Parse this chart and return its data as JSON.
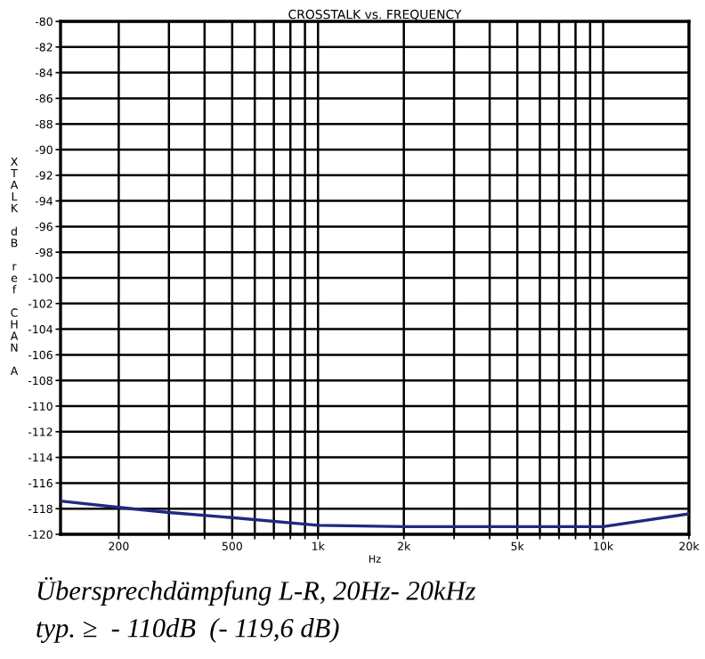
{
  "chart_data": {
    "type": "line",
    "title": "CROSSTALK vs. FREQUENCY",
    "xlabel": "Hz",
    "ylabel": "XTALK dB ref CHAN A",
    "log": "x",
    "x": [
      125,
      200,
      300,
      500,
      1000,
      2000,
      10000,
      20000
    ],
    "series": [
      {
        "color": "#1f2a80",
        "values": [
          -117.4,
          -117.9,
          -118.3,
          -118.7,
          -119.3,
          -119.4,
          -119.4,
          -118.4
        ]
      }
    ],
    "xlim": [
      125,
      20000
    ],
    "xticks": [
      {
        "value": 200,
        "label": "200"
      },
      {
        "value": 300,
        "label": null
      },
      {
        "value": 400,
        "label": null
      },
      {
        "value": 500,
        "label": "500"
      },
      {
        "value": 600,
        "label": null
      },
      {
        "value": 700,
        "label": null
      },
      {
        "value": 800,
        "label": null
      },
      {
        "value": 900,
        "label": null
      },
      {
        "value": 1000,
        "label": "1k"
      },
      {
        "value": 2000,
        "label": "2k"
      },
      {
        "value": 3000,
        "label": null
      },
      {
        "value": 4000,
        "label": null
      },
      {
        "value": 5000,
        "label": "5k"
      },
      {
        "value": 6000,
        "label": null
      },
      {
        "value": 7000,
        "label": null
      },
      {
        "value": 8000,
        "label": null
      },
      {
        "value": 9000,
        "label": null
      },
      {
        "value": 10000,
        "label": "10k"
      },
      {
        "value": 20000,
        "label": "20k"
      }
    ],
    "ylim": [
      -120,
      -80
    ],
    "yticks": [
      -120,
      -118,
      -116,
      -114,
      -112,
      -110,
      -108,
      -106,
      -104,
      -102,
      -100,
      -98,
      -96,
      -94,
      -92,
      -90,
      -88,
      -86,
      -84,
      -82,
      -80
    ],
    "grid": true,
    "annotations": [
      "Übersprechdämpfung L-R, 20Hz- 20kHz",
      "typ. ≥  - 110dB  (- 119,6 dB)"
    ]
  }
}
